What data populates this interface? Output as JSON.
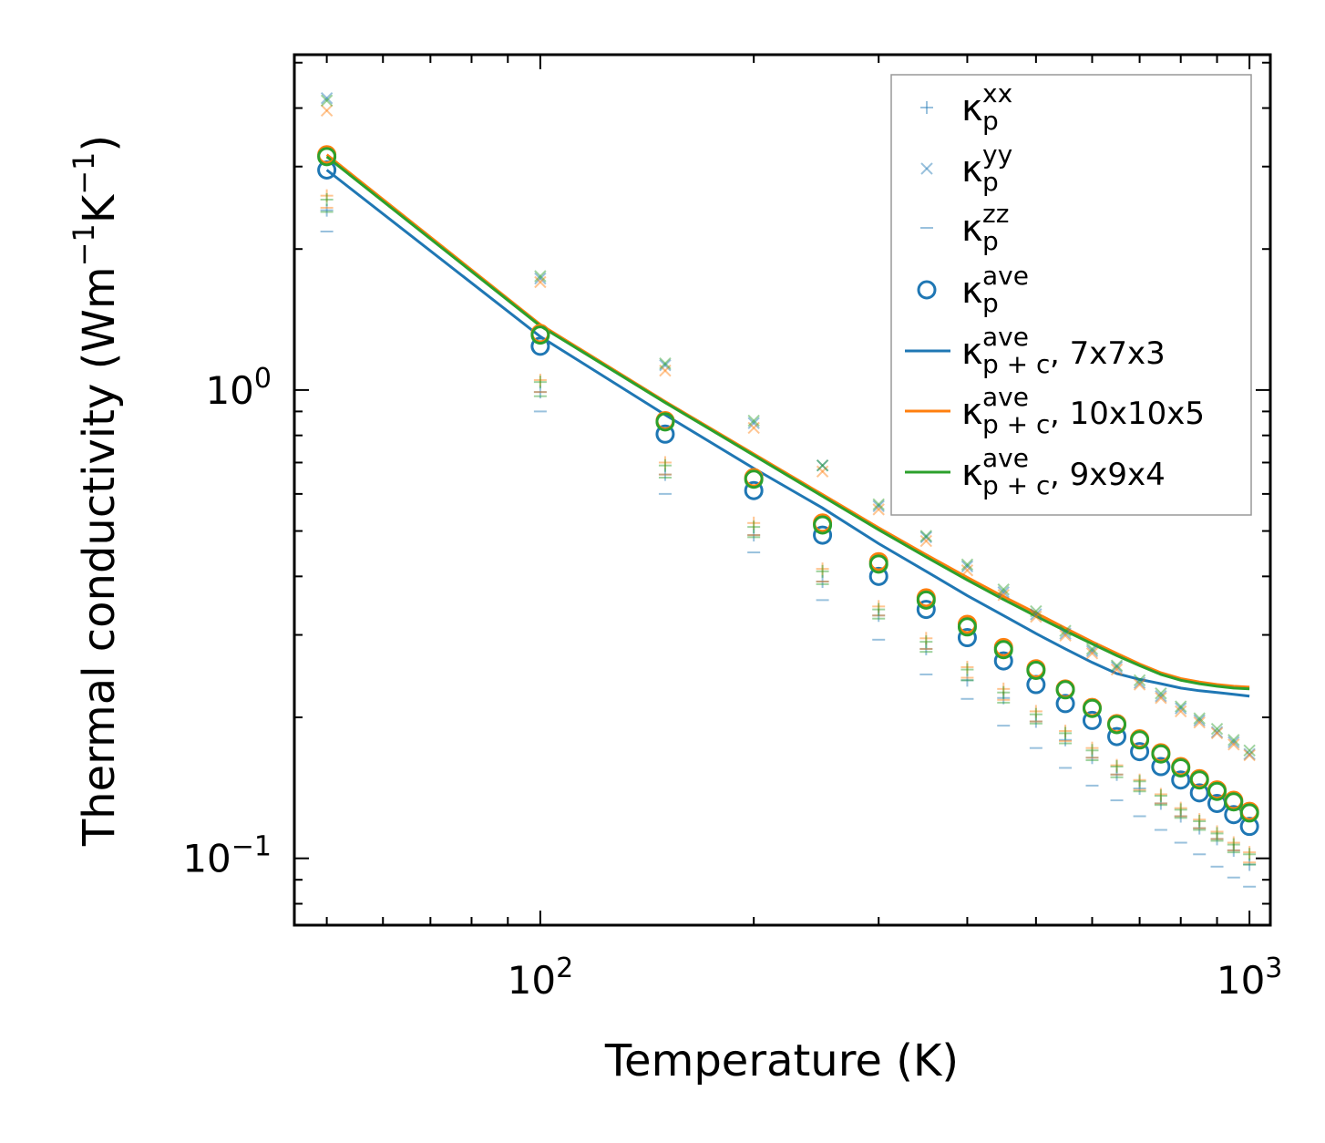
{
  "chart_data": {
    "type": "scatter",
    "xscale": "log",
    "yscale": "log",
    "xlabel": "Temperature (K)",
    "ylabel": "Thermal conductivity (Wm",
    "ylabel_sup1": "−1",
    "ylabel_mid": "K",
    "ylabel_sup2": "−1",
    "ylabel_end": ")",
    "xlim": [
      45,
      1070
    ],
    "ylim": [
      0.072,
      5.2
    ],
    "x_ticks": [
      {
        "base": "10",
        "exp": "2",
        "value": 100
      },
      {
        "base": "10",
        "exp": "3",
        "value": 1000
      }
    ],
    "y_ticks": [
      {
        "base": "10",
        "exp": "0",
        "value": 1.0
      },
      {
        "base": "10",
        "exp": "−1",
        "value": 0.1
      }
    ],
    "colors": {
      "blue": "#1f77b4",
      "orange": "#ff7f0e",
      "green": "#2ca02c"
    },
    "temperatures": [
      50,
      100,
      150,
      200,
      250,
      300,
      350,
      400,
      450,
      500,
      550,
      600,
      650,
      700,
      750,
      800,
      850,
      900,
      950,
      1000
    ],
    "series": [
      {
        "name": "7x7x3",
        "color": "#1f77b4",
        "kp_xx": [
          2.42,
          0.99,
          0.66,
          0.49,
          0.39,
          0.33,
          0.28,
          0.24,
          0.22,
          0.196,
          0.179,
          0.164,
          0.151,
          0.141,
          0.131,
          0.123,
          0.116,
          0.11,
          0.104,
          0.097
        ],
        "kp_yy": [
          4.2,
          1.73,
          1.13,
          0.85,
          0.69,
          0.565,
          0.485,
          0.42,
          0.37,
          0.332,
          0.302,
          0.277,
          0.256,
          0.237,
          0.222,
          0.209,
          0.197,
          0.186,
          0.177,
          0.167
        ],
        "kp_zz": [
          2.18,
          0.9,
          0.6,
          0.45,
          0.356,
          0.293,
          0.247,
          0.219,
          0.192,
          0.172,
          0.156,
          0.143,
          0.133,
          0.123,
          0.115,
          0.108,
          0.102,
          0.096,
          0.091,
          0.087
        ],
        "kp_ave": [
          2.95,
          1.24,
          0.805,
          0.61,
          0.49,
          0.4,
          0.34,
          0.296,
          0.264,
          0.235,
          0.214,
          0.197,
          0.182,
          0.169,
          0.157,
          0.147,
          0.138,
          0.131,
          0.124,
          0.117
        ],
        "kpc_ave": [
          2.95,
          1.3,
          0.885,
          0.68,
          0.56,
          0.47,
          0.41,
          0.364,
          0.33,
          0.302,
          0.28,
          0.262,
          0.248,
          0.241,
          0.236,
          0.231,
          0.228,
          0.226,
          0.224,
          0.222
        ]
      },
      {
        "name": "10x10x5",
        "color": "#ff7f0e",
        "kp_xx": [
          2.6,
          1.05,
          0.7,
          0.52,
          0.415,
          0.345,
          0.295,
          0.256,
          0.23,
          0.206,
          0.187,
          0.172,
          0.158,
          0.147,
          0.137,
          0.128,
          0.121,
          0.114,
          0.108,
          0.103
        ],
        "kp_yy": [
          3.95,
          1.7,
          1.1,
          0.83,
          0.67,
          0.556,
          0.476,
          0.412,
          0.365,
          0.328,
          0.299,
          0.274,
          0.253,
          0.235,
          0.22,
          0.206,
          0.195,
          0.185,
          0.175,
          0.166
        ],
        "kp_zz": [
          2.45,
          0.99,
          0.66,
          0.49,
          0.39,
          0.33,
          0.28,
          0.243,
          0.218,
          0.196,
          0.178,
          0.164,
          0.151,
          0.14,
          0.131,
          0.123,
          0.116,
          0.11,
          0.104,
          0.098
        ],
        "kp_ave": [
          3.18,
          1.32,
          0.86,
          0.65,
          0.52,
          0.43,
          0.36,
          0.316,
          0.282,
          0.254,
          0.23,
          0.21,
          0.194,
          0.18,
          0.168,
          0.157,
          0.148,
          0.14,
          0.133,
          0.126
        ],
        "kpc_ave": [
          3.18,
          1.38,
          0.945,
          0.73,
          0.598,
          0.508,
          0.445,
          0.398,
          0.362,
          0.334,
          0.31,
          0.29,
          0.274,
          0.26,
          0.249,
          0.242,
          0.238,
          0.235,
          0.233,
          0.232
        ]
      },
      {
        "name": "9x9x4",
        "color": "#2ca02c",
        "kp_xx": [
          2.55,
          1.04,
          0.69,
          0.51,
          0.41,
          0.34,
          0.29,
          0.253,
          0.226,
          0.203,
          0.185,
          0.17,
          0.157,
          0.146,
          0.136,
          0.127,
          0.12,
          0.113,
          0.107,
          0.102
        ],
        "kp_yy": [
          4.15,
          1.75,
          1.14,
          0.86,
          0.69,
          0.57,
          0.488,
          0.424,
          0.375,
          0.337,
          0.306,
          0.28,
          0.258,
          0.24,
          0.225,
          0.211,
          0.199,
          0.189,
          0.179,
          0.17
        ],
        "kp_zz": [
          2.4,
          0.97,
          0.65,
          0.485,
          0.385,
          0.325,
          0.276,
          0.24,
          0.215,
          0.194,
          0.176,
          0.162,
          0.149,
          0.139,
          0.13,
          0.122,
          0.115,
          0.109,
          0.103,
          0.097
        ],
        "kp_ave": [
          3.15,
          1.31,
          0.855,
          0.645,
          0.515,
          0.425,
          0.356,
          0.312,
          0.279,
          0.252,
          0.229,
          0.209,
          0.193,
          0.179,
          0.167,
          0.156,
          0.147,
          0.139,
          0.132,
          0.125
        ],
        "kpc_ave": [
          3.15,
          1.37,
          0.94,
          0.725,
          0.593,
          0.503,
          0.44,
          0.393,
          0.357,
          0.329,
          0.306,
          0.287,
          0.271,
          0.258,
          0.247,
          0.24,
          0.236,
          0.233,
          0.231,
          0.23
        ]
      }
    ],
    "legend": {
      "position": "top-right",
      "entries": [
        {
          "kind": "plus",
          "symbol": "κ",
          "sub": "p",
          "sup": "xx",
          "text": ""
        },
        {
          "kind": "x",
          "symbol": "κ",
          "sub": "p",
          "sup": "yy",
          "text": ""
        },
        {
          "kind": "dash",
          "symbol": "κ",
          "sub": "p",
          "sup": "zz",
          "text": ""
        },
        {
          "kind": "circle",
          "symbol": "κ",
          "sub": "p",
          "sup": "ave",
          "text": ""
        },
        {
          "kind": "line-blue",
          "symbol": "κ",
          "sub": "p + c",
          "sup": "ave",
          "text": ", 7x7x3"
        },
        {
          "kind": "line-orange",
          "symbol": "κ",
          "sub": "p + c",
          "sup": "ave",
          "text": ", 10x10x5"
        },
        {
          "kind": "line-green",
          "symbol": "κ",
          "sub": "p + c",
          "sup": "ave",
          "text": ", 9x9x4"
        }
      ]
    }
  }
}
